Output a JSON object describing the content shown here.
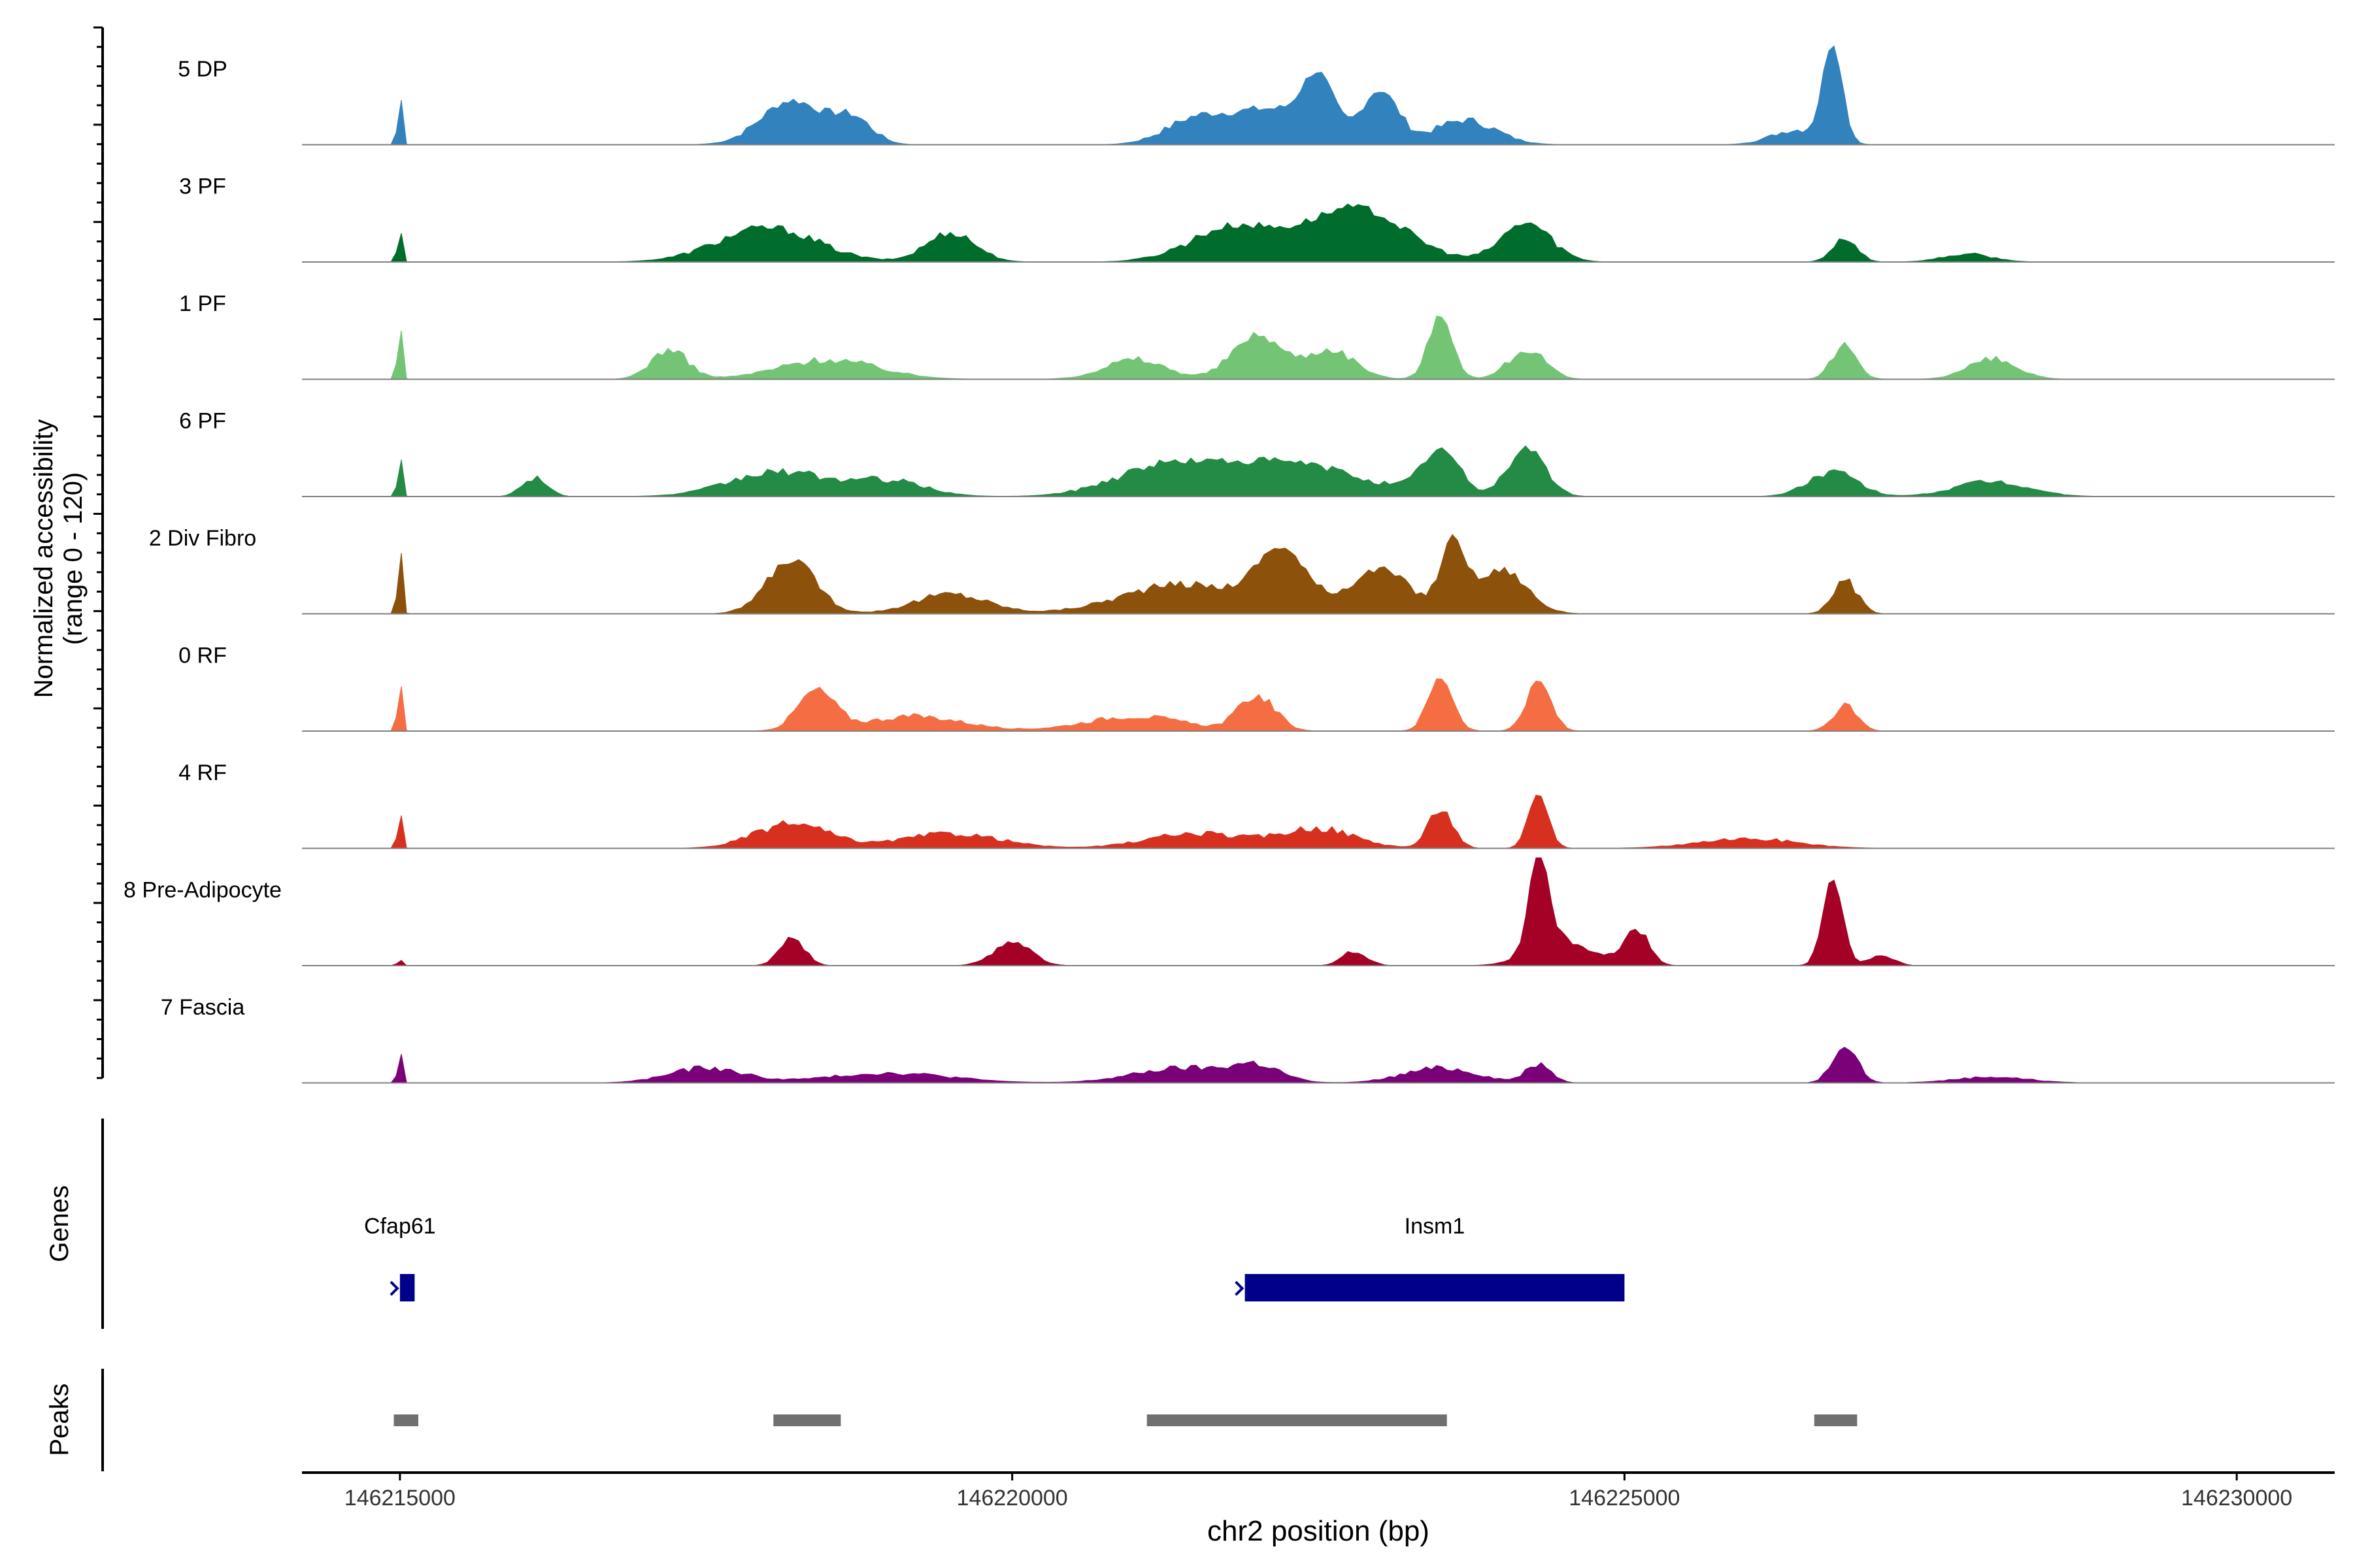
{
  "chart_data": {
    "type": "area",
    "ylabel_line1": "Normalized accessibility",
    "ylabel_line2": "(range 0 - 120)",
    "xlabel": "chr2 position (bp)",
    "xlim": [
      146214200,
      146230800
    ],
    "xticks": [
      146215000,
      146220000,
      146225000,
      146230000
    ],
    "xtick_labels": [
      "146215000",
      "146220000",
      "146225000",
      "146230000"
    ],
    "grid": false,
    "tracks": [
      {
        "name": "5 DP",
        "color": "#3182BD",
        "max": 0.9,
        "peaks": [
          [
            146215000,
            0.55,
            18
          ],
          [
            146218200,
            0.45,
            250
          ],
          [
            146218700,
            0.25,
            160
          ],
          [
            146221500,
            0.25,
            250
          ],
          [
            146222100,
            0.35,
            300
          ],
          [
            146222500,
            0.6,
            130
          ],
          [
            146223000,
            0.55,
            150
          ],
          [
            146223700,
            0.25,
            250
          ],
          [
            146226400,
            0.15,
            200
          ],
          [
            146226700,
            1.0,
            80
          ]
        ]
      },
      {
        "name": "3 PF",
        "color": "#006D2C",
        "max": 0.9,
        "peaks": [
          [
            146215000,
            0.4,
            18
          ],
          [
            146218000,
            0.35,
            400
          ],
          [
            146219500,
            0.3,
            200
          ],
          [
            146221800,
            0.35,
            350
          ],
          [
            146222800,
            0.55,
            400
          ],
          [
            146224200,
            0.4,
            200
          ],
          [
            146226800,
            0.25,
            100
          ],
          [
            146227800,
            0.08,
            200
          ]
        ]
      },
      {
        "name": "1 PF",
        "color": "#74C476",
        "max": 0.9,
        "peaks": [
          [
            146215000,
            0.6,
            18
          ],
          [
            146217200,
            0.3,
            150
          ],
          [
            146218500,
            0.2,
            400
          ],
          [
            146221000,
            0.2,
            250
          ],
          [
            146222000,
            0.45,
            200
          ],
          [
            146222600,
            0.3,
            200
          ],
          [
            146223500,
            0.65,
            100
          ],
          [
            146224200,
            0.3,
            150
          ],
          [
            146226800,
            0.35,
            100
          ],
          [
            146228000,
            0.2,
            200
          ]
        ]
      },
      {
        "name": "6 PF",
        "color": "#238B45",
        "max": 0.9,
        "peaks": [
          [
            146215000,
            0.5,
            18
          ],
          [
            146216100,
            0.2,
            100
          ],
          [
            146218100,
            0.25,
            400
          ],
          [
            146219000,
            0.15,
            300
          ],
          [
            146221200,
            0.25,
            400
          ],
          [
            146222200,
            0.35,
            600
          ],
          [
            146223500,
            0.45,
            150
          ],
          [
            146224200,
            0.5,
            150
          ],
          [
            146226700,
            0.25,
            200
          ],
          [
            146228000,
            0.15,
            300
          ]
        ]
      },
      {
        "name": "2 Div Fibro",
        "color": "#8C510A",
        "max": 0.9,
        "peaks": [
          [
            146215000,
            0.75,
            18
          ],
          [
            146218200,
            0.55,
            200
          ],
          [
            146219500,
            0.2,
            300
          ],
          [
            146221400,
            0.3,
            500
          ],
          [
            146222200,
            0.6,
            200
          ],
          [
            146223000,
            0.45,
            250
          ],
          [
            146223600,
            0.7,
            100
          ],
          [
            146224000,
            0.45,
            200
          ],
          [
            146226800,
            0.35,
            100
          ]
        ]
      },
      {
        "name": "0 RF",
        "color": "#F46D43",
        "max": 0.9,
        "peaks": [
          [
            146215000,
            0.6,
            18
          ],
          [
            146218400,
            0.4,
            150
          ],
          [
            146219200,
            0.15,
            400
          ],
          [
            146221000,
            0.15,
            400
          ],
          [
            146222000,
            0.35,
            150
          ],
          [
            146223500,
            0.55,
            100
          ],
          [
            146224300,
            0.5,
            100
          ],
          [
            146226800,
            0.25,
            100
          ]
        ]
      },
      {
        "name": "4 RF",
        "color": "#D7301F",
        "max": 0.9,
        "peaks": [
          [
            146215000,
            0.4,
            18
          ],
          [
            146218200,
            0.25,
            300
          ],
          [
            146219500,
            0.15,
            400
          ],
          [
            146221500,
            0.15,
            400
          ],
          [
            146222500,
            0.2,
            300
          ],
          [
            146223500,
            0.4,
            100
          ],
          [
            146224300,
            0.55,
            80
          ],
          [
            146226000,
            0.1,
            400
          ]
        ]
      },
      {
        "name": "8 Pre-Adipocyte",
        "color": "#A50026",
        "max": 0.9,
        "peaks": [
          [
            146215000,
            0.08,
            18
          ],
          [
            146218200,
            0.3,
            100
          ],
          [
            146220000,
            0.25,
            150
          ],
          [
            146222800,
            0.15,
            100
          ],
          [
            146224300,
            1.0,
            80
          ],
          [
            146224500,
            0.25,
            250
          ],
          [
            146225100,
            0.35,
            100
          ],
          [
            146226700,
            0.9,
            80
          ],
          [
            146227100,
            0.1,
            100
          ]
        ]
      },
      {
        "name": "7 Fascia",
        "color": "#7A0177",
        "max": 0.9,
        "peaks": [
          [
            146215000,
            0.35,
            18
          ],
          [
            146217500,
            0.15,
            300
          ],
          [
            146219000,
            0.1,
            500
          ],
          [
            146221400,
            0.15,
            400
          ],
          [
            146222000,
            0.15,
            200
          ],
          [
            146223500,
            0.15,
            300
          ],
          [
            146224300,
            0.2,
            100
          ],
          [
            146226800,
            0.4,
            100
          ],
          [
            146228000,
            0.06,
            300
          ]
        ]
      }
    ],
    "genes": {
      "ylabel": "Genes",
      "items": [
        {
          "name": "Cfap61",
          "start": 146215000,
          "end": 146215120,
          "strand": "+",
          "label_x": 146215000
        },
        {
          "name": "Insm1",
          "start": 146221900,
          "end": 146225000,
          "strand": "+",
          "label_x": 146223450
        }
      ],
      "color": "#00008B"
    },
    "peaks_track": {
      "ylabel": "Peaks",
      "color": "#707070",
      "intervals": [
        [
          146214950,
          146215150
        ],
        [
          146218050,
          146218600
        ],
        [
          146221100,
          146223550
        ],
        [
          146226550,
          146226900
        ]
      ]
    }
  }
}
